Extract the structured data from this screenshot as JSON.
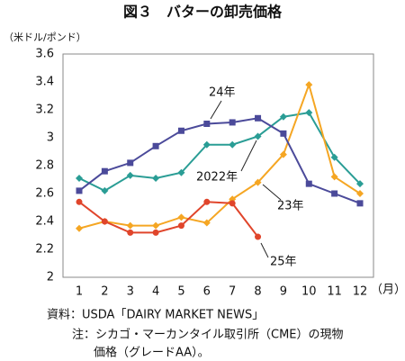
{
  "chart_data": {
    "type": "line",
    "title": "図３　バターの卸売価格",
    "y_label": "（米ドル/ポンド）",
    "x_label": "（月）",
    "categories": [
      "1",
      "2",
      "3",
      "4",
      "5",
      "6",
      "7",
      "8",
      "9",
      "10",
      "11",
      "12"
    ],
    "series": [
      {
        "name": "2022年",
        "color": "#2a9d95",
        "marker": "diamond",
        "values": [
          2.71,
          2.62,
          2.73,
          2.71,
          2.75,
          2.95,
          2.95,
          3.01,
          3.15,
          3.18,
          2.86,
          2.67
        ]
      },
      {
        "name": "23年",
        "color": "#f5a623",
        "marker": "diamond",
        "values": [
          2.35,
          2.4,
          2.37,
          2.37,
          2.43,
          2.39,
          2.56,
          2.68,
          2.88,
          3.38,
          2.72,
          2.6
        ]
      },
      {
        "name": "24年",
        "color": "#4b4a9a",
        "marker": "square",
        "values": [
          2.62,
          2.76,
          2.82,
          2.94,
          3.05,
          3.1,
          3.11,
          3.14,
          3.03,
          2.67,
          2.6,
          2.53
        ]
      },
      {
        "name": "25年",
        "color": "#e0452b",
        "marker": "circle",
        "values": [
          2.54,
          2.4,
          2.32,
          2.32,
          2.37,
          2.54,
          2.53,
          2.29,
          null,
          null,
          null,
          null
        ]
      }
    ],
    "ylim": [
      2,
      3.6
    ],
    "yticks": [
      2,
      2.2,
      2.4,
      2.6,
      2.8,
      3,
      3.2,
      3.4,
      3.6
    ],
    "grid": false,
    "notes": [
      "資料：USDA「DAIRY MARKET NEWS」",
      "注：シカゴ・マーカンタイル取引所（CME）の現物",
      "価格（グレードAA）。"
    ]
  }
}
